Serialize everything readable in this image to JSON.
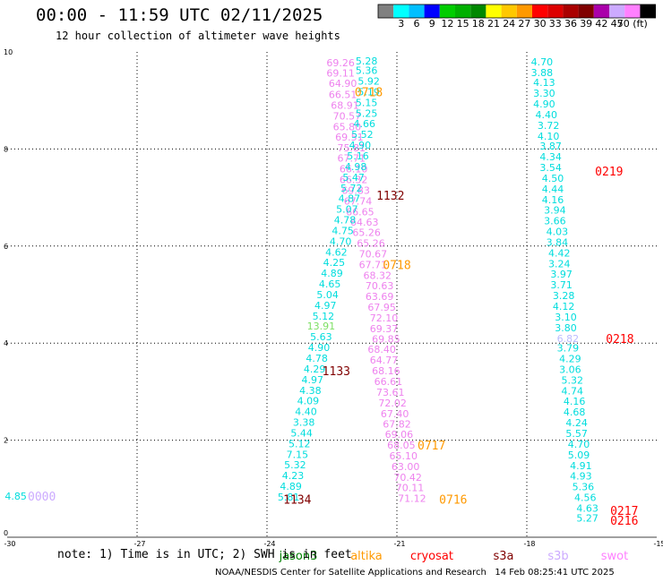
{
  "header": {
    "title": "00:00 - 11:59 UTC 02/11/2025",
    "subtitle": "12 hour collection of altimeter wave heights"
  },
  "colorbar": {
    "labels": [
      "3",
      "6",
      "9",
      "12",
      "15",
      "18",
      "21",
      "24",
      "27",
      "30",
      "33",
      "36",
      "39",
      "42",
      "45",
      "70 (ft)"
    ],
    "colors": [
      "#808080",
      "#00ffff",
      "#00bfff",
      "#0000ff",
      "#00cd00",
      "#00b000",
      "#008800",
      "#ffff00",
      "#ffc800",
      "#ff9900",
      "#ff0000",
      "#dd0000",
      "#aa0000",
      "#800000",
      "#aa00aa",
      "#ccaaff",
      "#ff80ff",
      "#000000"
    ]
  },
  "note": "note: 1) Time is in UTC; 2) SWH is in feet",
  "satellites": [
    {
      "name": "jason3",
      "color": "#008000"
    },
    {
      "name": "altika",
      "color": "#ff9900"
    },
    {
      "name": "cryosat",
      "color": "#ff0000"
    },
    {
      "name": "s3a",
      "color": "#800000"
    },
    {
      "name": "s3b",
      "color": "#ccaaff"
    },
    {
      "name": "swot",
      "color": "#ff80ff"
    }
  ],
  "footer": "NOAA/NESDIS Center for Satellite Applications and Research   14 Feb 08:25:41 UTC 2025",
  "chart_data": {
    "type": "scatter",
    "xlim": [
      -30,
      -15
    ],
    "ylim": [
      0,
      10
    ],
    "x_ticks": [
      -30,
      -27,
      -24,
      -21,
      -18,
      -15
    ],
    "y_ticks": [
      0,
      2,
      4,
      6,
      8,
      10
    ],
    "grid": true,
    "series": [
      {
        "name": "swot",
        "color": "#ee82ee",
        "points": [
          [
            -22.3,
            9.78,
            "69.26"
          ],
          [
            -22.3,
            9.57,
            "69.11"
          ],
          [
            -22.25,
            9.35,
            "64.90"
          ],
          [
            -22.25,
            9.12,
            "66.51"
          ],
          [
            -22.2,
            8.9,
            "68.91"
          ],
          [
            -22.15,
            8.68,
            "70.57"
          ],
          [
            -22.15,
            8.46,
            "65.80"
          ],
          [
            -22.1,
            8.25,
            "69.51"
          ],
          [
            -22.05,
            8.03,
            "75.81"
          ],
          [
            -22.05,
            7.81,
            "67.71"
          ],
          [
            -22.0,
            7.59,
            "66.10"
          ],
          [
            -22.0,
            7.37,
            "66.32"
          ],
          [
            -21.95,
            7.15,
            "69.83"
          ],
          [
            -21.9,
            6.93,
            "67.74"
          ],
          [
            -21.85,
            6.71,
            "66.65"
          ],
          [
            -21.75,
            6.49,
            "64.63"
          ],
          [
            -21.7,
            6.28,
            "65.26"
          ],
          [
            -21.6,
            6.06,
            "65.26"
          ],
          [
            -21.55,
            5.84,
            "70.67"
          ],
          [
            -21.55,
            5.62,
            "67.71"
          ],
          [
            -21.45,
            5.4,
            "68.32"
          ],
          [
            -21.4,
            5.18,
            "70.63"
          ],
          [
            -21.4,
            4.96,
            "63.69"
          ],
          [
            -21.35,
            4.74,
            "67.95"
          ],
          [
            -21.3,
            4.52,
            "72.10"
          ],
          [
            -21.3,
            4.3,
            "69.37"
          ],
          [
            -21.25,
            4.09,
            "69.85"
          ],
          [
            -21.35,
            3.87,
            "68.40"
          ],
          [
            -21.3,
            3.65,
            "64.77"
          ],
          [
            -21.25,
            3.43,
            "68.16"
          ],
          [
            -21.2,
            3.21,
            "66.61"
          ],
          [
            -21.15,
            2.99,
            "73.61"
          ],
          [
            -21.1,
            2.77,
            "72.02"
          ],
          [
            -21.05,
            2.55,
            "67.40"
          ],
          [
            -21.0,
            2.33,
            "67.82"
          ],
          [
            -20.95,
            2.12,
            "69.06"
          ],
          [
            -20.9,
            1.9,
            "68.05"
          ],
          [
            -20.85,
            1.68,
            "65.10"
          ],
          [
            -20.8,
            1.46,
            "63.00"
          ],
          [
            -20.75,
            1.24,
            "70.42"
          ],
          [
            -20.7,
            1.02,
            "70.11"
          ],
          [
            -20.65,
            0.8,
            "71.12"
          ]
        ]
      },
      {
        "name": "altika-track",
        "color": "#00dddd",
        "points": [
          [
            -21.7,
            9.82,
            "5.28"
          ],
          [
            -21.7,
            9.62,
            "5.36"
          ],
          [
            -21.65,
            9.4,
            "5.92"
          ],
          [
            -21.65,
            9.18,
            "5.19"
          ],
          [
            -21.7,
            8.96,
            "5.15"
          ],
          [
            -21.7,
            8.74,
            "5.25"
          ],
          [
            -21.75,
            8.52,
            "4.66"
          ],
          [
            -21.8,
            8.3,
            "5.52"
          ],
          [
            -21.85,
            8.08,
            "4.90"
          ],
          [
            -21.9,
            7.86,
            "5.16"
          ],
          [
            -21.95,
            7.64,
            "4.98"
          ],
          [
            -22.0,
            7.42,
            "5.47"
          ],
          [
            -22.05,
            7.2,
            "5.72"
          ],
          [
            -22.1,
            6.98,
            "4.87"
          ],
          [
            -22.15,
            6.76,
            "5.07"
          ],
          [
            -22.2,
            6.54,
            "4.78"
          ],
          [
            -22.25,
            6.32,
            "4.75"
          ],
          [
            -22.3,
            6.1,
            "4.70"
          ],
          [
            -22.4,
            5.88,
            "4.62"
          ],
          [
            -22.45,
            5.66,
            "4.25"
          ],
          [
            -22.5,
            5.44,
            "4.89"
          ],
          [
            -22.55,
            5.22,
            "4.65"
          ],
          [
            -22.6,
            5.0,
            "5.04"
          ],
          [
            -22.65,
            4.78,
            "4.97"
          ],
          [
            -22.7,
            4.56,
            "5.12"
          ],
          [
            -22.75,
            4.13,
            "5.63"
          ],
          [
            -22.8,
            3.91,
            "4.90"
          ],
          [
            -22.85,
            3.69,
            "4.78"
          ],
          [
            -22.9,
            3.47,
            "4.29"
          ],
          [
            -22.95,
            3.25,
            "4.97"
          ],
          [
            -23.0,
            3.03,
            "4.38"
          ],
          [
            -23.05,
            2.81,
            "4.09"
          ],
          [
            -23.1,
            2.59,
            "4.40"
          ],
          [
            -23.15,
            2.37,
            "3.38"
          ],
          [
            -23.2,
            2.15,
            "5.44"
          ],
          [
            -23.25,
            1.93,
            "5.12"
          ],
          [
            -23.3,
            1.71,
            "7.15"
          ],
          [
            -23.35,
            1.49,
            "5.32"
          ],
          [
            -23.4,
            1.27,
            "4.23"
          ],
          [
            -23.45,
            1.05,
            "4.89"
          ],
          [
            -23.5,
            0.83,
            "5.81"
          ]
        ]
      },
      {
        "name": "jason3",
        "color": "#7ddf64",
        "points": [
          [
            -22.75,
            4.35,
            "13.91"
          ]
        ]
      },
      {
        "name": "cryosat-track",
        "color": "#00dddd",
        "points": [
          [
            -17.65,
            9.8,
            "4.70"
          ],
          [
            -17.65,
            9.58,
            "3.88"
          ],
          [
            -17.6,
            9.37,
            "4.13"
          ],
          [
            -17.6,
            9.15,
            "3.30"
          ],
          [
            -17.6,
            8.93,
            "4.90"
          ],
          [
            -17.55,
            8.71,
            "4.40"
          ],
          [
            -17.5,
            8.49,
            "3.72"
          ],
          [
            -17.5,
            8.27,
            "4.10"
          ],
          [
            -17.45,
            8.06,
            "3.87"
          ],
          [
            -17.45,
            7.84,
            "4.34"
          ],
          [
            -17.45,
            7.62,
            "3.54"
          ],
          [
            -17.4,
            7.4,
            "4.50"
          ],
          [
            -17.4,
            7.18,
            "4.44"
          ],
          [
            -17.4,
            6.96,
            "4.16"
          ],
          [
            -17.35,
            6.74,
            "3.94"
          ],
          [
            -17.35,
            6.52,
            "3.66"
          ],
          [
            -17.3,
            6.3,
            "4.03"
          ],
          [
            -17.3,
            6.08,
            "3.84"
          ],
          [
            -17.25,
            5.86,
            "4.42"
          ],
          [
            -17.25,
            5.64,
            "3.24"
          ],
          [
            -17.2,
            5.42,
            "3.97"
          ],
          [
            -17.2,
            5.2,
            "3.71"
          ],
          [
            -17.15,
            4.98,
            "3.28"
          ],
          [
            -17.15,
            4.76,
            "4.12"
          ],
          [
            -17.1,
            4.54,
            "3.10"
          ],
          [
            -17.1,
            4.32,
            "3.80"
          ],
          [
            -17.05,
            3.9,
            "3.79"
          ],
          [
            -17.0,
            3.68,
            "4.29"
          ],
          [
            -17.0,
            3.46,
            "3.06"
          ],
          [
            -16.95,
            3.24,
            "5.32"
          ],
          [
            -16.95,
            3.02,
            "4.74"
          ],
          [
            -16.9,
            2.8,
            "4.16"
          ],
          [
            -16.9,
            2.58,
            "4.68"
          ],
          [
            -16.85,
            2.36,
            "4.24"
          ],
          [
            -16.85,
            2.14,
            "5.57"
          ],
          [
            -16.8,
            1.92,
            "4.70"
          ],
          [
            -16.8,
            1.7,
            "5.09"
          ],
          [
            -16.75,
            1.48,
            "4.91"
          ],
          [
            -16.75,
            1.26,
            "4.93"
          ],
          [
            -16.7,
            1.04,
            "5.36"
          ],
          [
            -16.65,
            0.82,
            "4.56"
          ],
          [
            -16.6,
            0.6,
            "4.63"
          ],
          [
            -16.6,
            0.4,
            "5.27"
          ]
        ]
      },
      {
        "name": "s3b",
        "color": "#bbbbff",
        "points": [
          [
            -17.05,
            4.1,
            "6.82"
          ]
        ]
      },
      {
        "name": "west-point",
        "color": "#00dddd",
        "points": [
          [
            -29.8,
            0.85,
            "4.85"
          ]
        ]
      }
    ],
    "pass_times": [
      {
        "label": "0718",
        "x": -21.65,
        "y": 9.18,
        "color": "#ff9900"
      },
      {
        "label": "1132",
        "x": -21.15,
        "y": 7.05,
        "color": "#800000"
      },
      {
        "label": "0718",
        "x": -21.0,
        "y": 5.62,
        "color": "#ff9900"
      },
      {
        "label": "1133",
        "x": -22.4,
        "y": 3.43,
        "color": "#800000"
      },
      {
        "label": "0717",
        "x": -20.2,
        "y": 1.9,
        "color": "#ff9900"
      },
      {
        "label": "1134",
        "x": -23.3,
        "y": 0.78,
        "color": "#800000"
      },
      {
        "label": "0716",
        "x": -19.7,
        "y": 0.78,
        "color": "#ff9900"
      },
      {
        "label": "0219",
        "x": -16.1,
        "y": 7.55,
        "color": "#ff0000"
      },
      {
        "label": "0218",
        "x": -15.85,
        "y": 4.1,
        "color": "#ff0000"
      },
      {
        "label": "0217",
        "x": -15.75,
        "y": 0.55,
        "color": "#ff0000"
      },
      {
        "label": "0216",
        "x": -15.75,
        "y": 0.35,
        "color": "#ff0000"
      },
      {
        "label": "0000",
        "x": -29.2,
        "y": 0.85,
        "color": "#ccaaff"
      }
    ]
  }
}
